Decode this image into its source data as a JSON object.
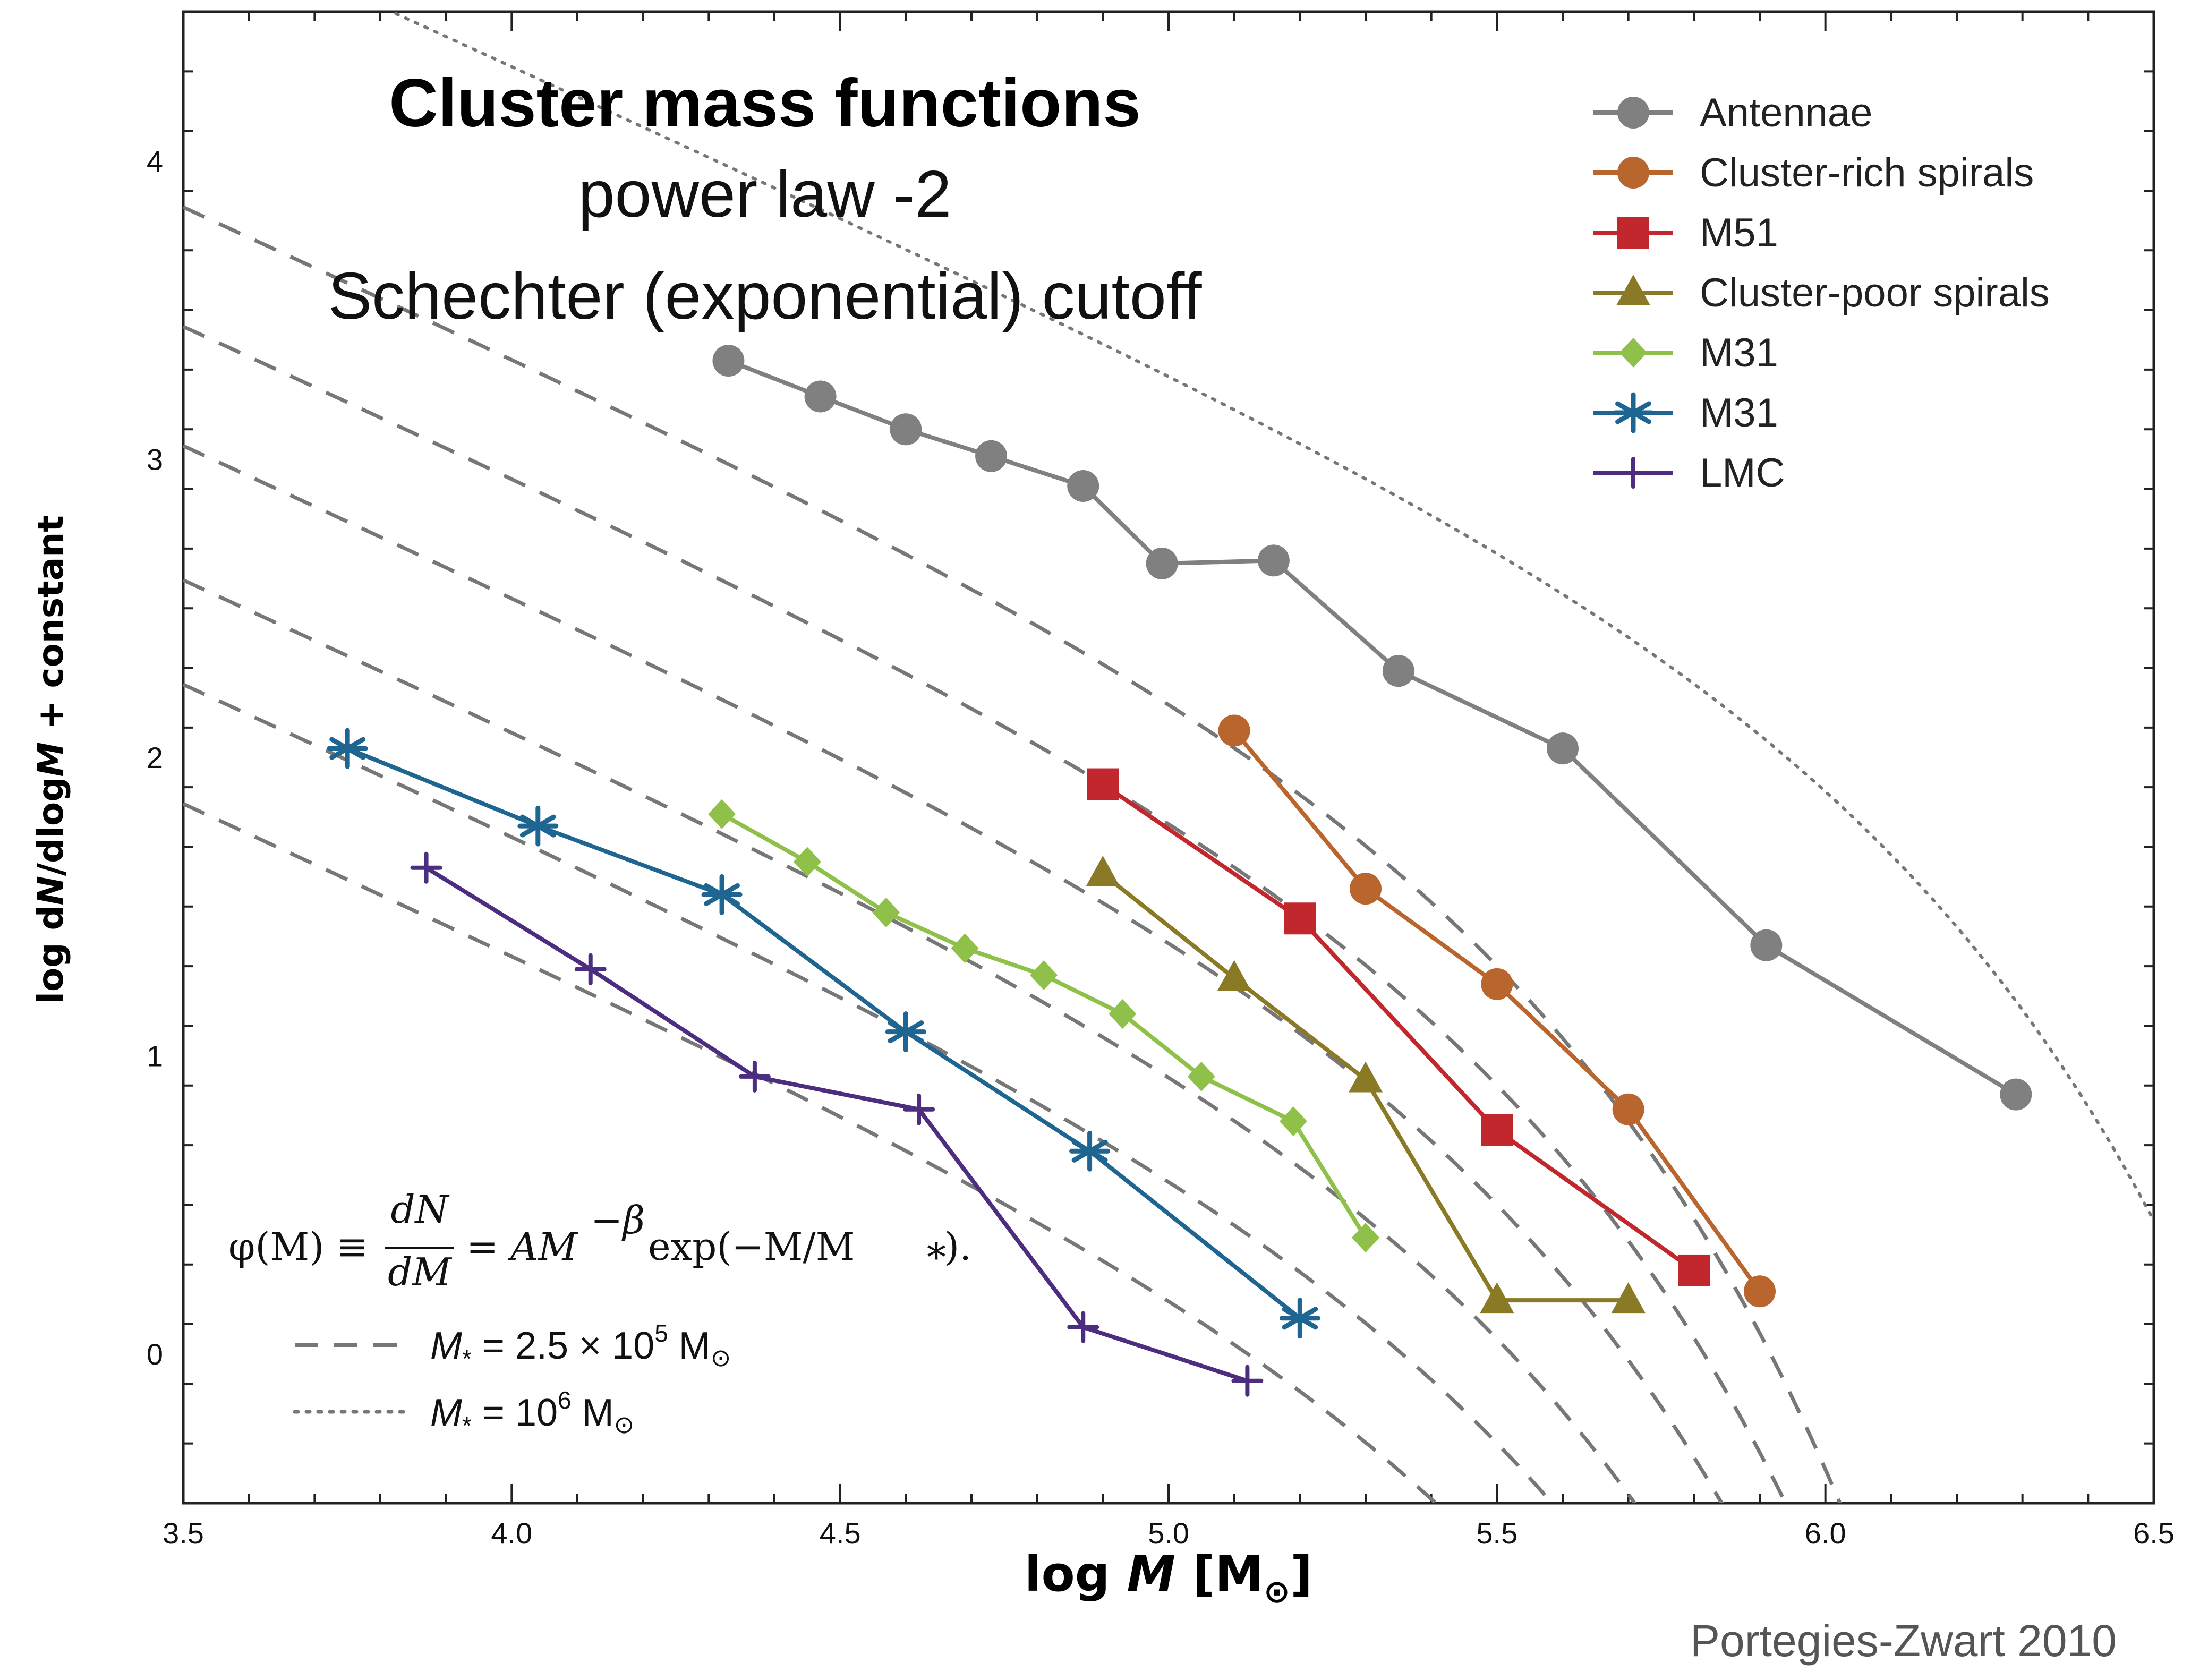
{
  "chart_data": {
    "type": "line",
    "title": "Cluster mass functions",
    "subtitle_lines": [
      "power law -2",
      "Schechter (exponential) cutoff"
    ],
    "xlabel_parts": {
      "main": "log ",
      "italic": "M",
      "unit_open": "  [M",
      "unit_sub": "⊙",
      "unit_close": "]"
    },
    "ylabel_parts": {
      "a": "log d",
      "b": "N",
      "c": "/dlog",
      "d": "M",
      "e": " + constant"
    },
    "xlim": [
      3.5,
      6.5
    ],
    "ylim": [
      -0.5,
      4.5
    ],
    "xticks": [
      3.5,
      4.0,
      4.5,
      5.0,
      5.5,
      6.0,
      6.5
    ],
    "xtick_labels": [
      "3.5",
      "4.0",
      "4.5",
      "5.0",
      "5.5",
      "6.0",
      "6.5"
    ],
    "yticks": [
      0,
      1,
      2,
      3,
      4
    ],
    "ytick_labels": [
      "0",
      "1",
      "2",
      "3",
      "4"
    ],
    "legend_position": "top-right",
    "series": [
      {
        "name": "Antennae",
        "color": "#808080",
        "marker": "circle",
        "x": [
          4.33,
          4.47,
          4.6,
          4.73,
          4.87,
          4.99,
          5.16,
          5.35,
          5.6,
          5.91,
          6.29
        ],
        "y": [
          3.33,
          3.21,
          3.1,
          3.01,
          2.91,
          2.65,
          2.66,
          2.29,
          2.03,
          1.37,
          0.87
        ]
      },
      {
        "name": "Cluster-rich spirals",
        "color": "#b9652e",
        "marker": "circle",
        "x": [
          5.1,
          5.3,
          5.5,
          5.7,
          5.9
        ],
        "y": [
          2.09,
          1.56,
          1.24,
          0.82,
          0.21
        ]
      },
      {
        "name": "M51",
        "color": "#c1272d",
        "marker": "square",
        "x": [
          4.9,
          5.2,
          5.5,
          5.8
        ],
        "y": [
          1.91,
          1.46,
          0.75,
          0.28
        ]
      },
      {
        "name": "Cluster-poor spirals",
        "color": "#8a7a26",
        "marker": "triangle",
        "x": [
          4.9,
          5.1,
          5.3,
          5.5,
          5.7
        ],
        "y": [
          1.61,
          1.26,
          0.92,
          0.18,
          0.18
        ]
      },
      {
        "name": "M31",
        "color": "#8fc14a",
        "marker": "diamond",
        "x": [
          4.32,
          4.45,
          4.57,
          4.69,
          4.81,
          4.93,
          5.05,
          5.19,
          5.3
        ],
        "y": [
          1.81,
          1.65,
          1.48,
          1.36,
          1.27,
          1.14,
          0.93,
          0.78,
          0.39
        ]
      },
      {
        "name": "M31",
        "color": "#1f6591",
        "marker": "asterisk",
        "x": [
          3.75,
          4.04,
          4.32,
          4.6,
          4.88,
          5.2
        ],
        "y": [
          2.03,
          1.77,
          1.54,
          1.08,
          0.68,
          0.12
        ]
      },
      {
        "name": "LMC",
        "color": "#4d2d80",
        "marker": "plus",
        "x": [
          3.87,
          4.12,
          4.37,
          4.62,
          4.87,
          5.12
        ],
        "y": [
          1.63,
          1.29,
          0.93,
          0.82,
          0.09,
          -0.09
        ]
      }
    ],
    "reference_models": {
      "form": "phi(M) = A M^-beta exp(-M/M*)",
      "slope_beta": 2,
      "dashed": {
        "M_star_log": 5.39794,
        "offsets": [
          1.85,
          2.25,
          2.6,
          3.05,
          3.45,
          3.85
        ]
      },
      "dotted": {
        "M_star_log": 6.0,
        "offset": 4.82
      }
    },
    "legend_refs": [
      {
        "style": "dashed",
        "label_lhs": "M",
        "label_sub": "*",
        "label_eq": " = 2.5 × 10",
        "label_exp": "5",
        "label_unit": " M",
        "label_unit_sub": "⊙"
      },
      {
        "style": "dotted",
        "label_lhs": "M",
        "label_sub": "*",
        "label_eq": " = 10",
        "label_exp": "6",
        "label_unit": " M",
        "label_unit_sub": "⊙"
      }
    ],
    "formula": {
      "lhs": "φ(M) ≡",
      "num": "dN",
      "den": "dM",
      "rhs": "= AM",
      "exp": "−β",
      "tail": " exp(−M/M",
      "tail_sub": "*",
      "tail_end": ")."
    },
    "credit": "Portegies-Zwart 2010"
  }
}
